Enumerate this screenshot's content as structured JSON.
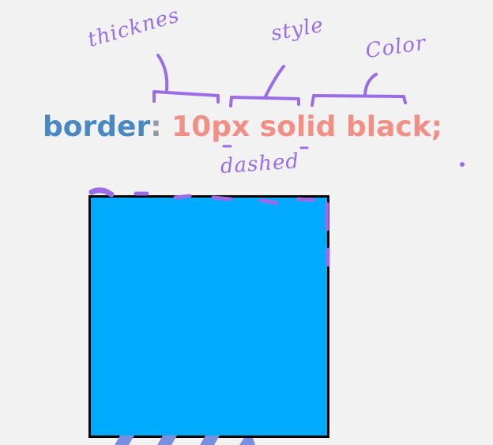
{
  "annotations": {
    "thickness": "thicknes",
    "style": "style",
    "color": "Color",
    "alternative_style": "dashed"
  },
  "code": {
    "property": "border",
    "colon": ":",
    "thickness_value": "10px",
    "style_value": "solid",
    "color_value": "black",
    "semicolon": ";"
  },
  "colors": {
    "annotation": "#9a6de6",
    "property": "#4a88c2",
    "value": "#ef8f86",
    "box_fill": "#00aaff",
    "box_border": "#000000",
    "background": "#f2f2f2"
  }
}
